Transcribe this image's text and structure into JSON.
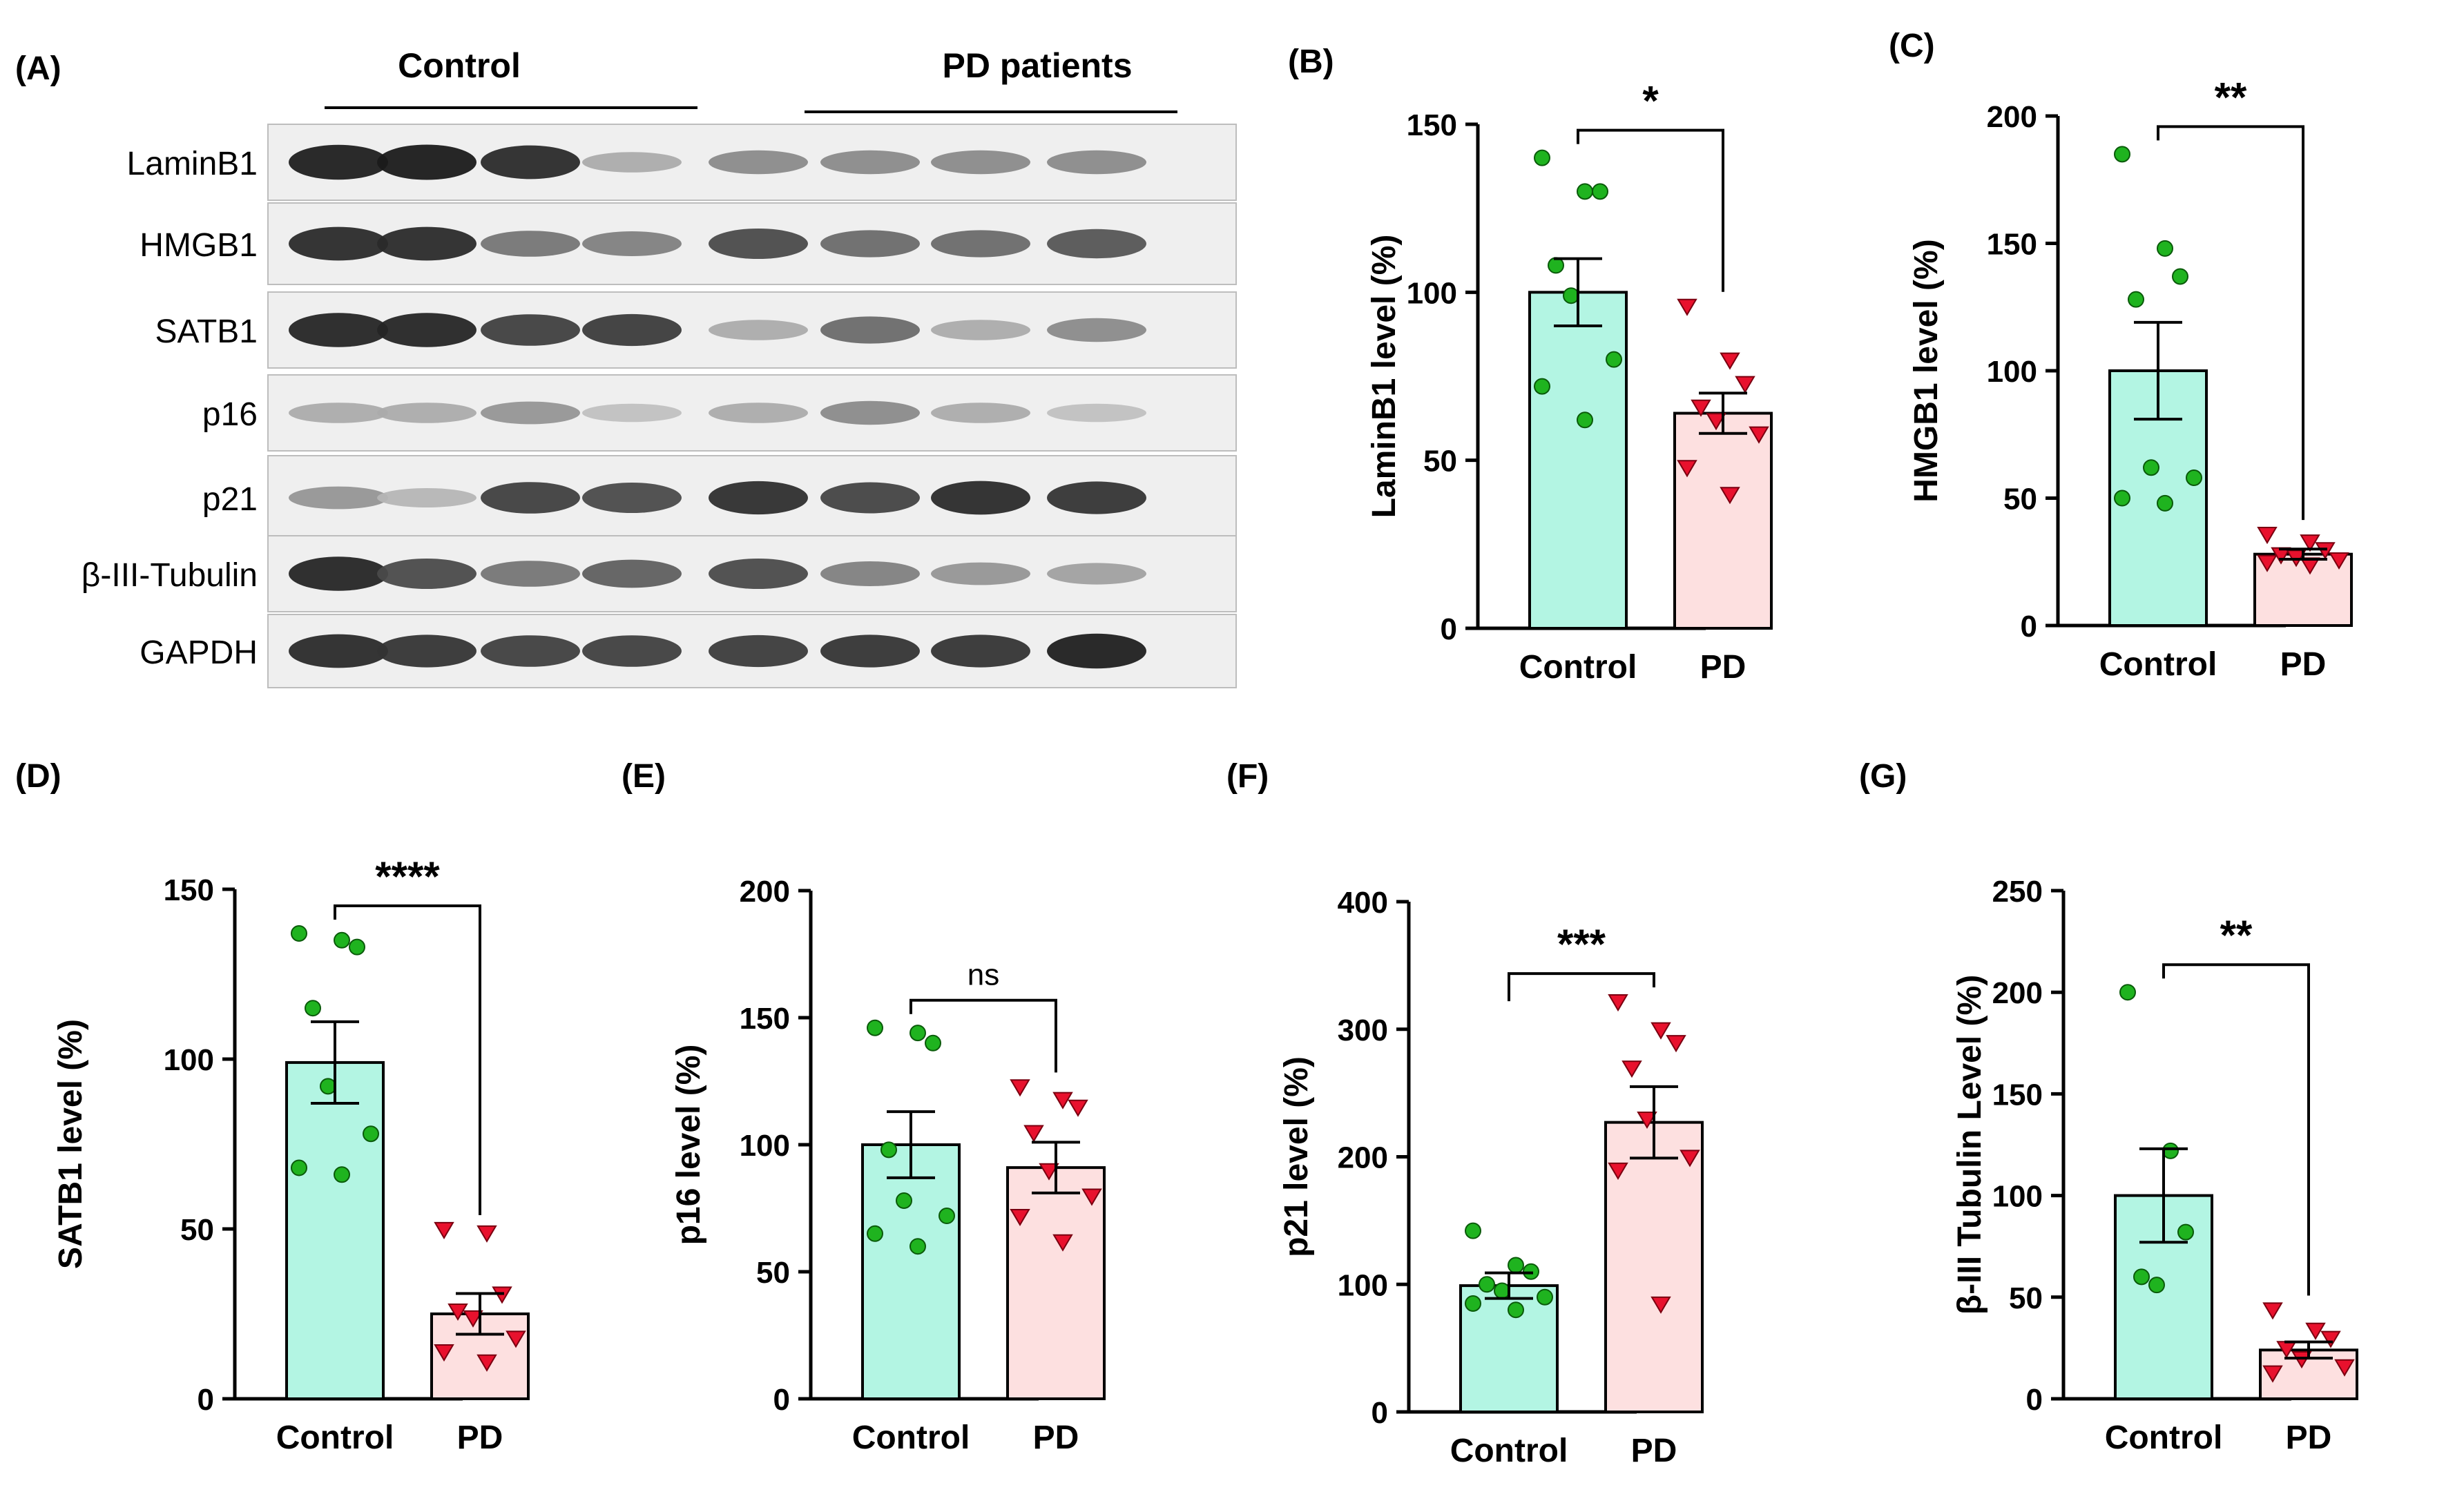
{
  "figure": {
    "panels": [
      {
        "key": "A",
        "label": "(A)"
      },
      {
        "key": "B",
        "label": "(B)"
      },
      {
        "key": "C",
        "label": "(C)"
      },
      {
        "key": "D",
        "label": "(D)"
      },
      {
        "key": "E",
        "label": "(E)"
      },
      {
        "key": "F",
        "label": "(F)"
      },
      {
        "key": "G",
        "label": "(G)"
      }
    ]
  },
  "blot": {
    "groups": [
      "Control",
      "PD patients"
    ],
    "rows": [
      {
        "label": "LaminB1",
        "intensities": [
          0.95,
          0.97,
          0.9,
          0.3,
          0.45,
          0.45,
          0.45,
          0.45
        ]
      },
      {
        "label": "HMGB1",
        "intensities": [
          0.9,
          0.9,
          0.55,
          0.5,
          0.75,
          0.6,
          0.6,
          0.7
        ]
      },
      {
        "label": "SATB1",
        "intensities": [
          0.92,
          0.92,
          0.8,
          0.82,
          0.3,
          0.6,
          0.3,
          0.45
        ]
      },
      {
        "label": "p16",
        "intensities": [
          0.3,
          0.3,
          0.4,
          0.2,
          0.3,
          0.45,
          0.3,
          0.2
        ]
      },
      {
        "label": "p21",
        "intensities": [
          0.4,
          0.25,
          0.8,
          0.75,
          0.88,
          0.78,
          0.9,
          0.85
        ]
      },
      {
        "label": "β-III-Tubulin",
        "intensities": [
          0.92,
          0.75,
          0.55,
          0.65,
          0.75,
          0.5,
          0.4,
          0.35
        ]
      },
      {
        "label": "GAPDH",
        "intensities": [
          0.9,
          0.85,
          0.8,
          0.8,
          0.82,
          0.85,
          0.85,
          0.95
        ]
      }
    ]
  },
  "chart_data": [
    {
      "panel": "B",
      "type": "bar",
      "categories": [
        "Control",
        "PD"
      ],
      "ylabel": "LaminB1 level (%)",
      "ylim": [
        0,
        150
      ],
      "yticks": [
        0,
        50,
        100,
        150
      ],
      "means": [
        100,
        64
      ],
      "sem": [
        10,
        6
      ],
      "points": [
        [
          140,
          130,
          130,
          108,
          99,
          80,
          72,
          62
        ],
        [
          96,
          80,
          73,
          66,
          62,
          58,
          48,
          40
        ]
      ],
      "significance": "*"
    },
    {
      "panel": "C",
      "type": "bar",
      "categories": [
        "Control",
        "PD"
      ],
      "ylabel": "HMGB1 level (%)",
      "ylim": [
        0,
        200
      ],
      "yticks": [
        0,
        50,
        100,
        150,
        200
      ],
      "means": [
        100,
        28
      ],
      "sem": [
        19,
        2
      ],
      "points": [
        [
          185,
          148,
          137,
          128,
          62,
          58,
          50,
          48
        ],
        [
          36,
          33,
          30,
          28,
          27,
          26,
          25,
          24
        ]
      ],
      "significance": "**"
    },
    {
      "panel": "D",
      "type": "bar",
      "categories": [
        "Control",
        "PD"
      ],
      "ylabel": "SATB1 level (%)",
      "ylim": [
        0,
        150
      ],
      "yticks": [
        0,
        50,
        100,
        150
      ],
      "means": [
        99,
        25
      ],
      "sem": [
        12,
        6
      ],
      "points": [
        [
          137,
          135,
          133,
          115,
          92,
          78,
          68,
          66
        ],
        [
          50,
          49,
          31,
          26,
          24,
          18,
          14,
          11
        ]
      ],
      "significance": "****"
    },
    {
      "panel": "E",
      "type": "bar",
      "categories": [
        "Control",
        "PD"
      ],
      "ylabel": "p16 level (%)",
      "ylim": [
        0,
        200
      ],
      "yticks": [
        0,
        50,
        100,
        150,
        200
      ],
      "means": [
        100,
        91
      ],
      "sem": [
        13,
        10
      ],
      "points": [
        [
          146,
          144,
          140,
          98,
          78,
          72,
          65,
          60
        ],
        [
          123,
          118,
          115,
          105,
          90,
          80,
          72,
          62
        ]
      ],
      "significance": "ns"
    },
    {
      "panel": "F",
      "type": "bar",
      "categories": [
        "Control",
        "PD"
      ],
      "ylabel": "p21 level (%)",
      "ylim": [
        0,
        400
      ],
      "yticks": [
        0,
        100,
        200,
        300,
        400
      ],
      "means": [
        99,
        227
      ],
      "sem": [
        10,
        28
      ],
      "points": [
        [
          142,
          115,
          110,
          100,
          95,
          90,
          85,
          80
        ],
        [
          322,
          300,
          290,
          270,
          230,
          200,
          190,
          85
        ]
      ],
      "significance": "***"
    },
    {
      "panel": "G",
      "type": "bar",
      "categories": [
        "Control",
        "PD"
      ],
      "ylabel": "β-III Tubulin Level (%)",
      "ylim": [
        0,
        250
      ],
      "yticks": [
        0,
        50,
        100,
        150,
        200,
        250
      ],
      "means": [
        100,
        24
      ],
      "sem": [
        23,
        4
      ],
      "points": [
        [
          200,
          122,
          82,
          60,
          56
        ],
        [
          44,
          34,
          30,
          25,
          20,
          16,
          13
        ]
      ],
      "significance": "**"
    }
  ],
  "colors": {
    "control_bar": "#b3f5e3",
    "pd_bar": "#fde0e0",
    "control_point": "#1fb31f",
    "pd_point": "#e8112d",
    "blot_bg": "#efefef",
    "ink": "#000000"
  }
}
